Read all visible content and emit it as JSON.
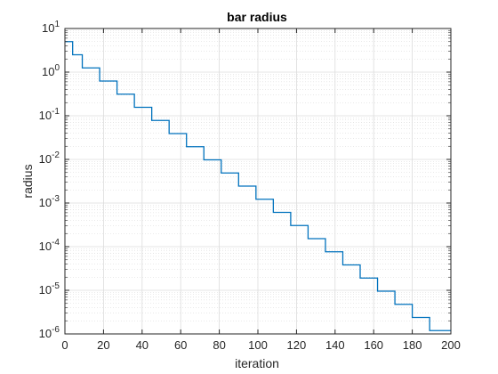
{
  "chart_data": {
    "type": "line",
    "title": "bar radius",
    "xlabel": "iteration",
    "ylabel": "radius",
    "xlim": [
      0,
      200
    ],
    "ylim": [
      1e-06,
      10
    ],
    "yscale": "log",
    "grid": true,
    "minor_grid": true,
    "line_style": "step",
    "x_ticks": [
      0,
      20,
      40,
      60,
      80,
      100,
      120,
      140,
      160,
      180,
      200
    ],
    "y_ticks": [
      {
        "base": "10",
        "exp": "1"
      },
      {
        "base": "10",
        "exp": "0"
      },
      {
        "base": "10",
        "exp": "-1"
      },
      {
        "base": "10",
        "exp": "-2"
      },
      {
        "base": "10",
        "exp": "-3"
      },
      {
        "base": "10",
        "exp": "-4"
      },
      {
        "base": "10",
        "exp": "-5"
      },
      {
        "base": "10",
        "exp": "-6"
      }
    ],
    "series": [
      {
        "color": "#0072bd",
        "x": [
          0,
          4,
          4,
          9,
          9,
          18,
          18,
          27,
          27,
          36,
          36,
          45,
          45,
          54,
          54,
          63,
          63,
          72,
          72,
          81,
          81,
          90,
          90,
          99,
          99,
          108,
          108,
          117,
          117,
          126,
          126,
          135,
          135,
          144,
          144,
          153,
          153,
          162,
          162,
          171,
          171,
          180,
          180,
          189,
          189,
          200
        ],
        "y": [
          5,
          5,
          2.5,
          2.5,
          1.25,
          1.25,
          0.625,
          0.625,
          0.3125,
          0.3125,
          0.15625,
          0.15625,
          0.078125,
          0.078125,
          0.0390625,
          0.0390625,
          0.01953125,
          0.01953125,
          0.009765625,
          0.009765625,
          0.0048828125,
          0.0048828125,
          0.00244140625,
          0.00244140625,
          0.001220703125,
          0.001220703125,
          0.0006103515625,
          0.0006103515625,
          0.00030517578125,
          0.00030517578125,
          0.000152587890625,
          0.000152587890625,
          7.62939453125e-05,
          7.62939453125e-05,
          3.814697265625e-05,
          3.814697265625e-05,
          1.9073486328125e-05,
          1.9073486328125e-05,
          9.5367431640625e-06,
          9.5367431640625e-06,
          4.76837158203125e-06,
          4.76837158203125e-06,
          2.384185791015625e-06,
          2.384185791015625e-06,
          1.1920928955078125e-06,
          1.1920928955078125e-06
        ]
      }
    ]
  }
}
